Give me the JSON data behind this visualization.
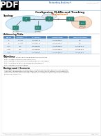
{
  "title_pdf": "PDF",
  "header_academy": "Networking Academy®",
  "header_right": "Packet Tracer®",
  "page_title_black": "Configuring VLANs and Trunking",
  "page_title_orange": "(Solutions)",
  "section_topology": "Topology",
  "section_addressing": "Addressing Table",
  "section_objectives": "Objectives",
  "section_background": "Background / Scenario",
  "obj_lines": [
    "Part 1: Build the Network and Configure Basic Device Settings",
    "Part 2: Create VLANs and Assign Switch Ports",
    "Part 3: Maintain VLAN Port Assignments and the VLAN Database",
    "Part 4: Configure an 802.1Q Trunk between the Switches",
    "Part 5: Delete the VLAN Database"
  ],
  "bg_lines": [
    "Modern switches use virtual local area networks (VLANs) to improve network performance by separating",
    "large areas of broadcasted domains into smaller ones. Trunks can also be used as a security measure for",
    "controlling which hosts can communicate. In general, Trunks make it easier to assign a network to support",
    "the goal of an organization."
  ],
  "table_headers": [
    "Device",
    "Interface",
    "IP Address",
    "Subnet Mask",
    "Default Gateway"
  ],
  "table_rows": [
    [
      "S1",
      "VLAN 1",
      "192.168.1.11",
      "255.255.255.0",
      "N/A"
    ],
    [
      "S2",
      "VLAN 1",
      "192.168.1.12",
      "255.255.255.0",
      "N/A"
    ],
    [
      "PC-A",
      "NIC",
      "192.168.10.3",
      "255.255.255.0",
      "192.168.10.1"
    ],
    [
      "PC-B",
      "NIC",
      "192.168.20.4",
      "255.255.255.0",
      "192.168.20.1"
    ],
    [
      "PC-C",
      "NIC",
      "192.168.30.5",
      "255.255.255.0",
      "192.168.30.1"
    ]
  ],
  "bg_white": "#ffffff",
  "color_pdf_bg": "#000000",
  "color_pdf_text": "#ffffff",
  "color_title_orange": "#e07820",
  "color_header_blue": "#2255aa",
  "color_table_header": "#5588bb",
  "color_table_row_alt": "#ddeeff",
  "color_section_title": "#111111",
  "color_border": "#bbbbbb",
  "color_teal": "#2a8a78",
  "color_teal_dark": "#1a6655",
  "color_blue_cloud": "#cce8f8",
  "color_peach_cloud": "#f5d8c0",
  "color_trunk_cloud": "#e0e8f0",
  "color_line": "#555555",
  "footer_text": "© 2013 Cisco and/or its affiliates. All rights reserved. This document is Cisco Public.",
  "footer_page": "Page 4 of 10"
}
